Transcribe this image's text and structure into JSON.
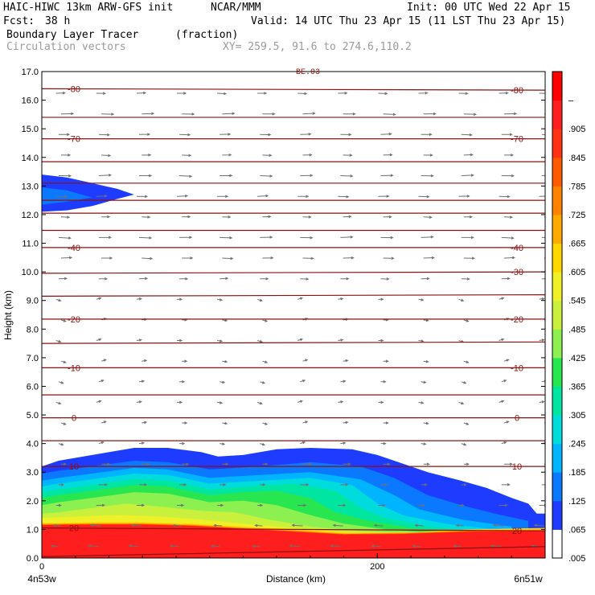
{
  "header": {
    "model": "HAIC-HIWC 13km ARW-GFS init",
    "org": "NCAR/MMM",
    "init": "Init: 00 UTC Wed 22 Apr 15",
    "fcst_label": "Fcst:",
    "fcst_value": "38 h",
    "valid": "Valid: 14 UTC Thu 23 Apr 15 (11 LST Thu 23 Apr 15)",
    "field": "Boundary Layer Tracer",
    "units": "(fraction)",
    "vectors": "Circulation vectors",
    "xy": "XY= 259.5, 91.6 to 274.6,110.2",
    "panel_note": "BE.03"
  },
  "chart_data": {
    "type": "heatmap",
    "xlabel": "Distance (km)",
    "ylabel": "Height (km)",
    "xlim": [
      0,
      300
    ],
    "ylim": [
      0,
      17
    ],
    "x_ticks": [
      {
        "value": 0,
        "label": "0"
      },
      {
        "value": 200,
        "label": "200"
      }
    ],
    "x_end_labels": {
      "left": "4n53w",
      "right": "6n51w"
    },
    "y_ticks": [
      "0.0",
      "1.0",
      "2.0",
      "3.0",
      "4.0",
      "5.0",
      "6.0",
      "7.0",
      "8.0",
      "9.0",
      "10.0",
      "11.0",
      "12.0",
      "13.0",
      "14.0",
      "15.0",
      "16.0",
      "17.0"
    ],
    "colorbar": {
      "labels": [
        ".005",
        ".065",
        ".125",
        ".185",
        ".245",
        ".305",
        ".365",
        ".425",
        ".485",
        ".545",
        ".605",
        ".665",
        ".725",
        ".785",
        ".845",
        ".905",
        "–"
      ],
      "colors": [
        "#ffffff",
        "#1e3cff",
        "#0a78ff",
        "#00b4ff",
        "#00dcdc",
        "#00e6a0",
        "#28e650",
        "#8cf050",
        "#c8f03c",
        "#f0f028",
        "#ffd700",
        "#ffaa00",
        "#ff8200",
        "#ff5a00",
        "#ff3214",
        "#ff1e1e",
        "#ff0000"
      ]
    },
    "tracer_regions": [
      {
        "level": 0.065,
        "color": "#1e3cff",
        "pts": [
          [
            0,
            0
          ],
          [
            300,
            0
          ],
          [
            300,
            1.55
          ],
          [
            295,
            1.55
          ],
          [
            290,
            1.9
          ],
          [
            280,
            2.1
          ],
          [
            265,
            2.45
          ],
          [
            250,
            2.7
          ],
          [
            230,
            3.0
          ],
          [
            200,
            3.6
          ],
          [
            185,
            3.8
          ],
          [
            160,
            3.85
          ],
          [
            140,
            3.8
          ],
          [
            120,
            3.6
          ],
          [
            105,
            3.55
          ],
          [
            95,
            3.7
          ],
          [
            75,
            3.85
          ],
          [
            55,
            3.85
          ],
          [
            30,
            3.6
          ],
          [
            10,
            3.4
          ],
          [
            0,
            3.2
          ]
        ]
      },
      {
        "level": 0.125,
        "color": "#0a78ff",
        "pts": [
          [
            0,
            0
          ],
          [
            290,
            0
          ],
          [
            290,
            1.3
          ],
          [
            270,
            1.55
          ],
          [
            250,
            1.85
          ],
          [
            230,
            2.2
          ],
          [
            210,
            2.8
          ],
          [
            190,
            3.2
          ],
          [
            160,
            3.35
          ],
          [
            130,
            3.2
          ],
          [
            100,
            3.1
          ],
          [
            75,
            3.35
          ],
          [
            55,
            3.4
          ],
          [
            30,
            3.2
          ],
          [
            10,
            3.05
          ],
          [
            0,
            2.95
          ]
        ]
      },
      {
        "level": 0.185,
        "color": "#00b4ff",
        "pts": [
          [
            0,
            0
          ],
          [
            280,
            0
          ],
          [
            280,
            1.1
          ],
          [
            250,
            1.35
          ],
          [
            225,
            1.7
          ],
          [
            210,
            2.2
          ],
          [
            190,
            2.75
          ],
          [
            160,
            3.0
          ],
          [
            130,
            2.9
          ],
          [
            100,
            2.8
          ],
          [
            75,
            3.1
          ],
          [
            55,
            3.15
          ],
          [
            30,
            2.95
          ],
          [
            10,
            2.8
          ],
          [
            0,
            2.7
          ]
        ]
      },
      {
        "level": 0.245,
        "color": "#00dcdc",
        "pts": [
          [
            0,
            0
          ],
          [
            270,
            0
          ],
          [
            270,
            1.0
          ],
          [
            240,
            1.2
          ],
          [
            215,
            1.5
          ],
          [
            200,
            1.9
          ],
          [
            185,
            2.55
          ],
          [
            160,
            2.8
          ],
          [
            130,
            2.7
          ],
          [
            100,
            2.6
          ],
          [
            75,
            2.9
          ],
          [
            55,
            2.95
          ],
          [
            30,
            2.75
          ],
          [
            10,
            2.6
          ],
          [
            0,
            2.5
          ]
        ]
      },
      {
        "level": 0.305,
        "color": "#00e6a0",
        "pts": [
          [
            0,
            0
          ],
          [
            260,
            0
          ],
          [
            260,
            0.95
          ],
          [
            230,
            1.1
          ],
          [
            205,
            1.4
          ],
          [
            190,
            1.75
          ],
          [
            175,
            2.35
          ],
          [
            150,
            2.6
          ],
          [
            125,
            2.5
          ],
          [
            100,
            2.4
          ],
          [
            75,
            2.7
          ],
          [
            55,
            2.75
          ],
          [
            30,
            2.55
          ],
          [
            10,
            2.4
          ],
          [
            0,
            2.3
          ]
        ]
      },
      {
        "level": 0.365,
        "color": "#28e650",
        "pts": [
          [
            0,
            0
          ],
          [
            250,
            0
          ],
          [
            250,
            0.9
          ],
          [
            220,
            1.05
          ],
          [
            195,
            1.3
          ],
          [
            175,
            1.6
          ],
          [
            160,
            2.1
          ],
          [
            140,
            2.35
          ],
          [
            120,
            2.3
          ],
          [
            100,
            2.2
          ],
          [
            75,
            2.5
          ],
          [
            55,
            2.55
          ],
          [
            30,
            2.35
          ],
          [
            10,
            2.2
          ],
          [
            0,
            2.1
          ]
        ]
      },
      {
        "level": 0.425,
        "color": "#8cf050",
        "pts": [
          [
            0,
            0
          ],
          [
            240,
            0
          ],
          [
            240,
            0.85
          ],
          [
            205,
            1.0
          ],
          [
            180,
            1.2
          ],
          [
            160,
            1.5
          ],
          [
            140,
            1.85
          ],
          [
            120,
            2.0
          ],
          [
            100,
            1.95
          ],
          [
            75,
            2.25
          ],
          [
            55,
            2.3
          ],
          [
            30,
            2.1
          ],
          [
            10,
            1.95
          ],
          [
            0,
            1.85
          ]
        ]
      },
      {
        "level": 0.485,
        "color": "#c8f03c",
        "pts": [
          [
            0,
            0
          ],
          [
            230,
            0
          ],
          [
            230,
            0.82
          ],
          [
            190,
            0.95
          ],
          [
            160,
            1.1
          ],
          [
            135,
            1.35
          ],
          [
            115,
            1.6
          ],
          [
            95,
            1.65
          ],
          [
            70,
            1.8
          ],
          [
            50,
            1.9
          ],
          [
            30,
            1.75
          ],
          [
            10,
            1.6
          ],
          [
            0,
            1.55
          ]
        ]
      },
      {
        "level": 0.545,
        "color": "#f0f028",
        "pts": [
          [
            0,
            0
          ],
          [
            220,
            0
          ],
          [
            220,
            0.8
          ],
          [
            180,
            0.9
          ],
          [
            150,
            1.05
          ],
          [
            120,
            1.2
          ],
          [
            95,
            1.35
          ],
          [
            70,
            1.45
          ],
          [
            45,
            1.5
          ],
          [
            20,
            1.45
          ],
          [
            0,
            1.4
          ]
        ]
      },
      {
        "level": 0.605,
        "color": "#ffd700",
        "pts": [
          [
            0,
            0
          ],
          [
            300,
            0
          ],
          [
            300,
            1.05
          ],
          [
            255,
            1.0
          ],
          [
            220,
            0.9
          ],
          [
            185,
            0.88
          ],
          [
            150,
            1.0
          ],
          [
            120,
            1.1
          ],
          [
            90,
            1.2
          ],
          [
            60,
            1.25
          ],
          [
            30,
            1.25
          ],
          [
            0,
            1.22
          ]
        ]
      },
      {
        "level": 0.665,
        "color": "#ffaa00",
        "pts": [
          [
            0,
            0
          ],
          [
            300,
            0
          ],
          [
            300,
            1.0
          ],
          [
            255,
            0.97
          ],
          [
            215,
            0.88
          ],
          [
            180,
            0.86
          ],
          [
            150,
            0.97
          ],
          [
            120,
            1.07
          ],
          [
            90,
            1.17
          ],
          [
            60,
            1.22
          ],
          [
            30,
            1.22
          ],
          [
            0,
            1.2
          ]
        ]
      },
      {
        "level": 0.785,
        "color": "#ff5a00",
        "pts": [
          [
            0,
            0
          ],
          [
            300,
            0
          ],
          [
            300,
            0.97
          ],
          [
            255,
            0.94
          ],
          [
            215,
            0.86
          ],
          [
            180,
            0.84
          ],
          [
            150,
            0.94
          ],
          [
            120,
            1.04
          ],
          [
            90,
            1.14
          ],
          [
            60,
            1.19
          ],
          [
            30,
            1.19
          ],
          [
            0,
            1.17
          ]
        ]
      },
      {
        "level": 0.905,
        "color": "#ff1e1e",
        "pts": [
          [
            0,
            0
          ],
          [
            300,
            0
          ],
          [
            300,
            0.95
          ],
          [
            255,
            0.92
          ],
          [
            215,
            0.84
          ],
          [
            180,
            0.82
          ],
          [
            150,
            0.92
          ],
          [
            120,
            1.02
          ],
          [
            90,
            1.12
          ],
          [
            60,
            1.17
          ],
          [
            30,
            1.17
          ],
          [
            0,
            1.15
          ]
        ]
      },
      {
        "level": 0.065,
        "color": "#1e3cff",
        "pts": [
          [
            0,
            12.1
          ],
          [
            15,
            12.15
          ],
          [
            30,
            12.3
          ],
          [
            45,
            12.55
          ],
          [
            55,
            12.7
          ],
          [
            45,
            12.9
          ],
          [
            30,
            13.1
          ],
          [
            15,
            13.3
          ],
          [
            0,
            13.4
          ]
        ]
      },
      {
        "level": 0.125,
        "color": "#0a78ff",
        "pts": [
          [
            0,
            12.35
          ],
          [
            15,
            12.45
          ],
          [
            30,
            12.6
          ],
          [
            15,
            12.85
          ],
          [
            0,
            12.95
          ]
        ]
      }
    ],
    "isotherms": [
      {
        "y": [
          0.05,
          0.4
        ],
        "label": null
      },
      {
        "y": [
          1.05,
          0.95
        ],
        "label": "20",
        "label_side": "both"
      },
      {
        "y": [
          3.2,
          3.2
        ],
        "label": "10",
        "label_side": "both"
      },
      {
        "y": [
          4.1,
          4.1
        ],
        "label": null
      },
      {
        "y": [
          4.9,
          4.9
        ],
        "label": "0",
        "label_side": "both"
      },
      {
        "y": [
          5.7,
          5.7
        ],
        "label": null
      },
      {
        "y": [
          6.65,
          6.65
        ],
        "label": "-10",
        "label_side": "both"
      },
      {
        "y": [
          7.5,
          7.55
        ],
        "label": null
      },
      {
        "y": [
          8.35,
          8.35
        ],
        "label": "-20",
        "label_side": "both"
      },
      {
        "y": [
          9.15,
          9.2
        ],
        "label": null
      },
      {
        "y": [
          9.95,
          10.0
        ],
        "label": "-30",
        "label_side": "right"
      },
      {
        "y": [
          10.85,
          10.85
        ],
        "label": "-40",
        "label_side": "both"
      },
      {
        "y": [
          11.45,
          11.45
        ],
        "label": null
      },
      {
        "y": [
          12.05,
          12.05
        ],
        "label": null
      },
      {
        "y": [
          12.5,
          12.5
        ],
        "label": null
      },
      {
        "y": [
          13.1,
          13.1
        ],
        "label": null
      },
      {
        "y": [
          13.85,
          13.85
        ],
        "label": null
      },
      {
        "y": [
          14.65,
          14.65
        ],
        "label": "-70",
        "label_side": "both"
      },
      {
        "y": [
          15.4,
          15.4
        ],
        "label": null
      },
      {
        "y": [
          16.4,
          16.35
        ],
        "label": "-80",
        "label_side": "both"
      }
    ],
    "colors": {
      "isotherm": "#8b1010",
      "vector": "#707070",
      "frame": "#000000"
    }
  }
}
